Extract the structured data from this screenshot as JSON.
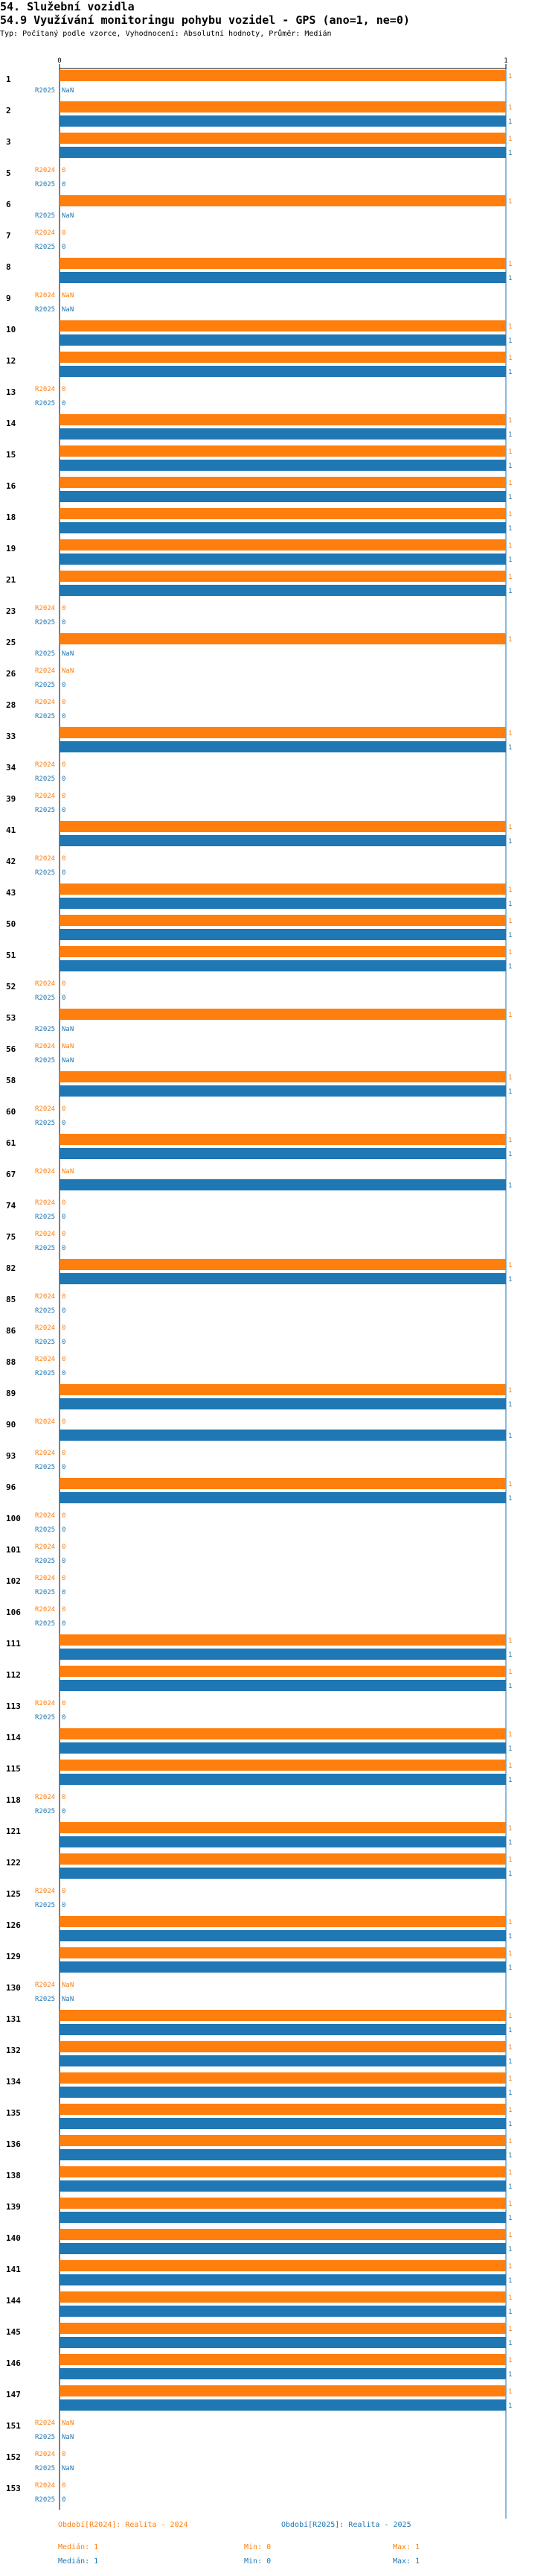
{
  "header": {
    "section": "54. Služební vozidla",
    "title": "54.9 Využívání monitoringu pohybu vozidel - GPS (ano=1, ne=0)",
    "subtitle": "Typ: Počítaný podle vzorce, Vyhodnocení: Absolutní hodnoty, Průměr: Medián"
  },
  "colors": {
    "r2024": "#ff7f0e",
    "r2025": "#1f77b4",
    "axis": "#1f77b4"
  },
  "chart_data": {
    "type": "bar",
    "orientation": "horizontal",
    "xlim": [
      0,
      1
    ],
    "x_ticks": [
      "0",
      "1"
    ],
    "categories": [
      "1",
      "2",
      "3",
      "5",
      "6",
      "7",
      "8",
      "9",
      "10",
      "12",
      "13",
      "14",
      "15",
      "16",
      "18",
      "19",
      "21",
      "23",
      "25",
      "26",
      "28",
      "33",
      "34",
      "39",
      "41",
      "42",
      "43",
      "50",
      "51",
      "52",
      "53",
      "56",
      "58",
      "60",
      "61",
      "67",
      "74",
      "75",
      "82",
      "85",
      "86",
      "88",
      "89",
      "90",
      "93",
      "96",
      "100",
      "101",
      "102",
      "106",
      "111",
      "112",
      "113",
      "114",
      "115",
      "118",
      "121",
      "122",
      "125",
      "126",
      "129",
      "130",
      "131",
      "132",
      "134",
      "135",
      "136",
      "138",
      "139",
      "140",
      "141",
      "144",
      "145",
      "146",
      "147",
      "151",
      "152",
      "153"
    ],
    "series": [
      {
        "name": "R2024",
        "values": [
          1,
          1,
          1,
          0,
          1,
          0,
          1,
          null,
          1,
          1,
          0,
          1,
          1,
          1,
          1,
          1,
          1,
          0,
          1,
          null,
          0,
          1,
          0,
          0,
          1,
          0,
          1,
          1,
          1,
          0,
          1,
          null,
          1,
          0,
          1,
          null,
          0,
          0,
          1,
          0,
          0,
          0,
          1,
          0,
          0,
          1,
          0,
          0,
          0,
          0,
          1,
          1,
          0,
          1,
          1,
          0,
          1,
          1,
          0,
          1,
          1,
          null,
          1,
          1,
          1,
          1,
          1,
          1,
          1,
          1,
          1,
          1,
          1,
          1,
          1,
          null,
          0,
          0
        ]
      },
      {
        "name": "R2025",
        "values": [
          null,
          1,
          1,
          0,
          null,
          0,
          1,
          null,
          1,
          1,
          0,
          1,
          1,
          1,
          1,
          1,
          1,
          0,
          null,
          0,
          0,
          1,
          0,
          0,
          1,
          0,
          1,
          1,
          1,
          0,
          null,
          null,
          1,
          0,
          1,
          1,
          0,
          0,
          1,
          0,
          0,
          0,
          1,
          1,
          0,
          1,
          0,
          0,
          0,
          0,
          1,
          1,
          0,
          1,
          1,
          0,
          1,
          1,
          0,
          1,
          1,
          null,
          1,
          1,
          1,
          1,
          1,
          1,
          1,
          1,
          1,
          1,
          1,
          1,
          1,
          null,
          null,
          0
        ]
      }
    ],
    "legend": [
      {
        "name": "Období[R2024]: Realita - 2024",
        "median": "Medián: 1",
        "min": "Min: 0",
        "max": "Max: 1"
      },
      {
        "name": "Období[R2025]: Realita - 2025",
        "median": "Medián: 1",
        "min": "Min: 0",
        "max": "Max: 1"
      }
    ]
  }
}
